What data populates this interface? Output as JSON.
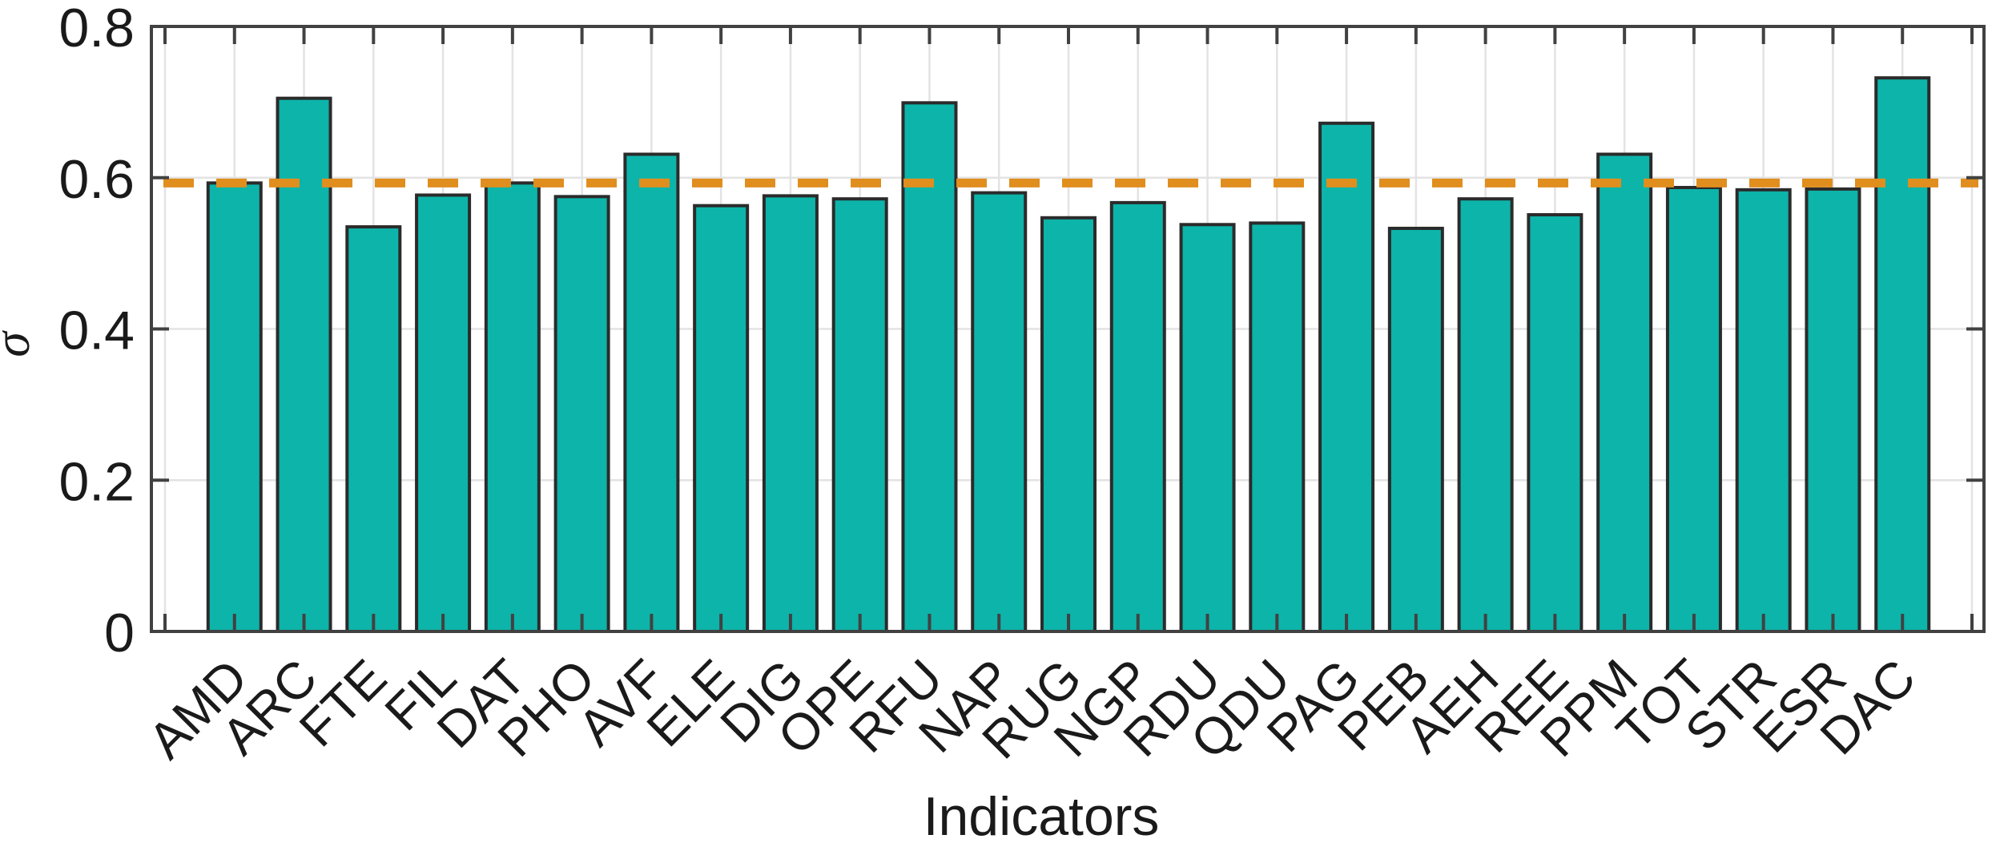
{
  "chart_data": {
    "type": "bar",
    "title": "",
    "xlabel": "Indicators",
    "ylabel": "σ",
    "categories": [
      "AMD",
      "ARC",
      "FTE",
      "FIL",
      "DAT",
      "PHO",
      "AVF",
      "ELE",
      "DIG",
      "OPE",
      "RFU",
      "NAP",
      "RUG",
      "NGP",
      "RDU",
      "QDU",
      "PAG",
      "PEB",
      "AEH",
      "REE",
      "PPM",
      "TOT",
      "STR",
      "ESR",
      "DAC"
    ],
    "values": [
      0.593,
      0.705,
      0.535,
      0.577,
      0.593,
      0.575,
      0.631,
      0.563,
      0.576,
      0.572,
      0.699,
      0.58,
      0.547,
      0.567,
      0.538,
      0.54,
      0.672,
      0.533,
      0.572,
      0.551,
      0.631,
      0.587,
      0.584,
      0.585,
      0.732
    ],
    "ylim": [
      0,
      0.8
    ],
    "yticks": [
      0,
      0.2,
      0.4,
      0.6,
      0.8
    ],
    "ytick_labels": [
      "0",
      "0.2",
      "0.4",
      "0.6",
      "0.8"
    ],
    "grid": true,
    "legend_position": "none",
    "reference_line": {
      "value": 0.593,
      "style": "dashed",
      "color": "#e08e1e"
    },
    "colors": {
      "bar_fill": "#0db4aa",
      "bar_edge": "#2b2b2b",
      "grid": "#e3e3e3",
      "axis": "#414141",
      "text": "#1a1a1a",
      "background": "#ffffff"
    }
  }
}
